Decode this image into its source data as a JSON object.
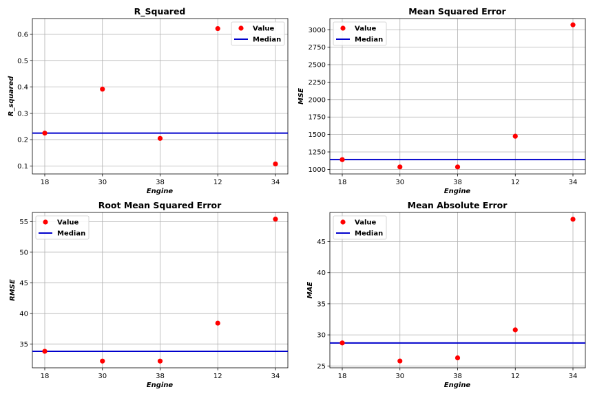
{
  "chart_data": [
    {
      "type": "scatter",
      "title": "R_Squared",
      "xlabel": "Engine",
      "ylabel": "R_squared",
      "categories": [
        "18",
        "30",
        "38",
        "12",
        "34"
      ],
      "series": [
        {
          "name": "Value",
          "values": [
            0.225,
            0.392,
            0.205,
            0.622,
            0.108
          ]
        }
      ],
      "median": {
        "name": "Median",
        "value": 0.225
      },
      "ylim": [
        0.07,
        0.66
      ],
      "yticks": [
        0.1,
        0.2,
        0.3,
        0.4,
        0.5,
        0.6
      ],
      "ytick_labels": [
        "0.1",
        "0.2",
        "0.3",
        "0.4",
        "0.5",
        "0.6"
      ],
      "grid": true,
      "legend": "top-right",
      "colors": {
        "value": "#ff0000",
        "median": "#0000cc"
      }
    },
    {
      "type": "scatter",
      "title": "Mean Squared Error",
      "xlabel": "Engine",
      "ylabel": "MSE",
      "categories": [
        "18",
        "30",
        "38",
        "12",
        "34"
      ],
      "series": [
        {
          "name": "Value",
          "values": [
            1140,
            1035,
            1035,
            1475,
            3070
          ]
        }
      ],
      "median": {
        "name": "Median",
        "value": 1140
      },
      "ylim": [
        935,
        3160
      ],
      "yticks": [
        1000,
        1250,
        1500,
        1750,
        2000,
        2250,
        2500,
        2750,
        3000
      ],
      "ytick_labels": [
        "1000",
        "1250",
        "1500",
        "1750",
        "2000",
        "2250",
        "2500",
        "2750",
        "3000"
      ],
      "grid": true,
      "legend": "top-left",
      "colors": {
        "value": "#ff0000",
        "median": "#0000cc"
      }
    },
    {
      "type": "scatter",
      "title": "Root Mean Squared Error",
      "xlabel": "Engine",
      "ylabel": "RMSE",
      "categories": [
        "18",
        "30",
        "38",
        "12",
        "34"
      ],
      "series": [
        {
          "name": "Value",
          "values": [
            33.8,
            32.2,
            32.2,
            38.4,
            55.4
          ]
        }
      ],
      "median": {
        "name": "Median",
        "value": 33.8
      },
      "ylim": [
        31.1,
        56.5
      ],
      "yticks": [
        35,
        40,
        45,
        50,
        55
      ],
      "ytick_labels": [
        "35",
        "40",
        "45",
        "50",
        "55"
      ],
      "grid": true,
      "legend": "top-left",
      "colors": {
        "value": "#ff0000",
        "median": "#0000cc"
      }
    },
    {
      "type": "scatter",
      "title": "Mean Absolute Error",
      "xlabel": "Engine",
      "ylabel": "MAE",
      "categories": [
        "18",
        "30",
        "38",
        "12",
        "34"
      ],
      "series": [
        {
          "name": "Value",
          "values": [
            28.7,
            25.8,
            26.3,
            30.8,
            48.6
          ]
        }
      ],
      "median": {
        "name": "Median",
        "value": 28.7
      },
      "ylim": [
        24.7,
        49.7
      ],
      "yticks": [
        25,
        30,
        35,
        40,
        45
      ],
      "ytick_labels": [
        "25",
        "30",
        "35",
        "40",
        "45"
      ],
      "grid": true,
      "legend": "top-left",
      "colors": {
        "value": "#ff0000",
        "median": "#0000cc"
      }
    }
  ]
}
